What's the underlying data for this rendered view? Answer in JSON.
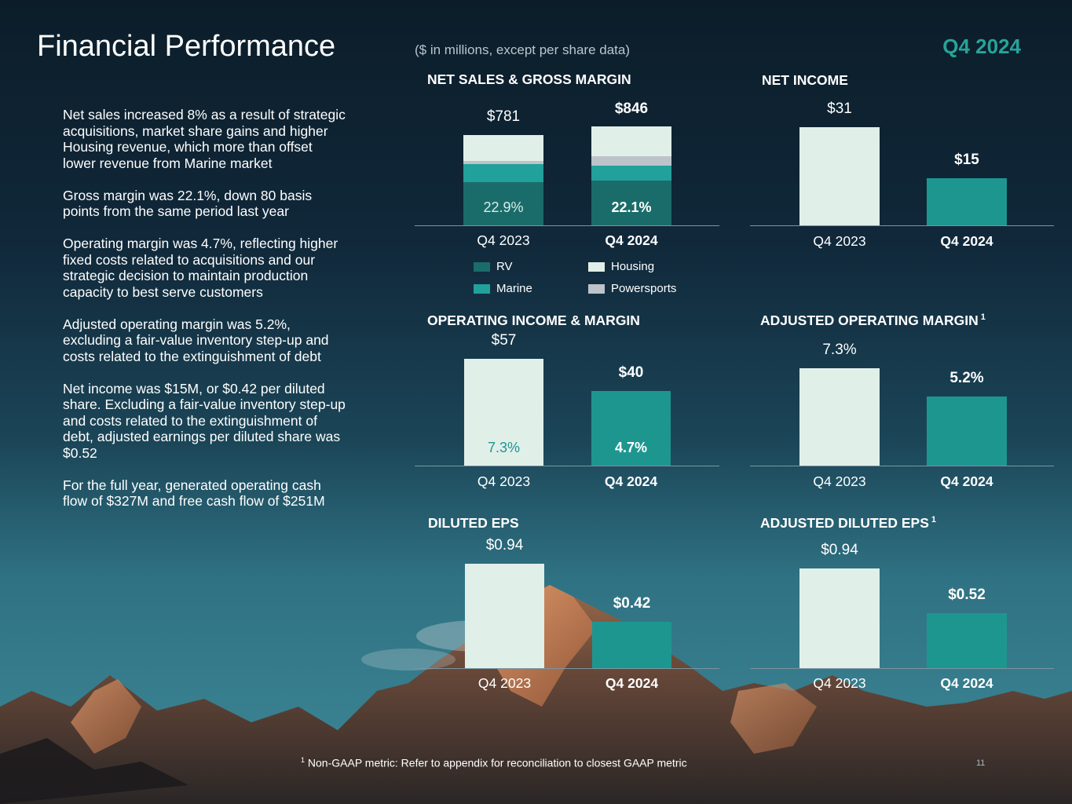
{
  "header": {
    "title": "Financial Performance",
    "units_note": "($ in millions, except per share data)",
    "period": "Q4 2024"
  },
  "bullets": [
    "Net sales increased 8% as a result of strategic acquisitions, market share gains and higher Housing revenue, which more than offset lower revenue from Marine market",
    "Gross margin was 22.1%, down 80 basis points from the same period last year",
    "Operating margin was 4.7%, reflecting higher fixed costs related to acquisitions and our strategic decision to maintain production capacity to best serve customers",
    "Adjusted operating margin was 5.2%, excluding a fair-value inventory step-up and costs related to the extinguishment of debt",
    "Net income was $15M, or $0.42 per diluted share. Excluding a fair-value inventory step-up and costs related to the extinguishment of debt, adjusted earnings per diluted share was $0.52",
    "For the full year, generated operating cash flow of $327M and free cash flow of $251M"
  ],
  "colors": {
    "rv": "#1a6c6a",
    "marine": "#22a09b",
    "housing": "#e1efe9",
    "powersports": "#bcc3c9",
    "prior_bar": "#e1efe9",
    "current_bar": "#1e9690",
    "accent": "#27a39a"
  },
  "chart_data": [
    {
      "id": "net-sales",
      "type": "bar",
      "stacked": true,
      "title": "NET SALES & GROSS MARGIN",
      "categories": [
        "Q4 2023",
        "Q4 2024"
      ],
      "totals": [
        781,
        846
      ],
      "value_labels": [
        "$781",
        "$846"
      ],
      "series": [
        {
          "name": "RV",
          "values": [
            373,
            383
          ]
        },
        {
          "name": "Marine",
          "values": [
            155,
            128
          ]
        },
        {
          "name": "Powersports",
          "values": [
            27,
            81
          ]
        },
        {
          "name": "Housing",
          "values": [
            226,
            254
          ]
        }
      ],
      "margin_labels": [
        "22.9%",
        "22.1%"
      ],
      "legend": [
        "RV",
        "Housing",
        "Marine",
        "Powersports"
      ]
    },
    {
      "id": "net-income",
      "type": "bar",
      "title": "NET INCOME",
      "categories": [
        "Q4 2023",
        "Q4 2024"
      ],
      "values": [
        31,
        15
      ],
      "value_labels": [
        "$31",
        "$15"
      ]
    },
    {
      "id": "operating-income",
      "type": "bar",
      "title": "OPERATING INCOME & MARGIN",
      "categories": [
        "Q4 2023",
        "Q4 2024"
      ],
      "values": [
        57,
        40
      ],
      "value_labels": [
        "$57",
        "$40"
      ],
      "margin_labels": [
        "7.3%",
        "4.7%"
      ]
    },
    {
      "id": "adj-op-margin",
      "type": "bar",
      "title": "ADJUSTED OPERATING MARGIN",
      "footnote_marker": "1",
      "categories": [
        "Q4 2023",
        "Q4 2024"
      ],
      "values": [
        7.3,
        5.2
      ],
      "value_labels": [
        "7.3%",
        "5.2%"
      ]
    },
    {
      "id": "diluted-eps",
      "type": "bar",
      "title": "DILUTED EPS",
      "categories": [
        "Q4 2023",
        "Q4 2024"
      ],
      "values": [
        0.94,
        0.42
      ],
      "value_labels": [
        "$0.94",
        "$0.42"
      ]
    },
    {
      "id": "adj-diluted-eps",
      "type": "bar",
      "title": "ADJUSTED DILUTED EPS",
      "footnote_marker": "1",
      "categories": [
        "Q4 2023",
        "Q4 2024"
      ],
      "values": [
        0.94,
        0.52
      ],
      "value_labels": [
        "$0.94",
        "$0.52"
      ]
    }
  ],
  "footnote": {
    "marker": "1",
    "text": "Non-GAAP metric: Refer to appendix for reconciliation to closest GAAP metric"
  },
  "page_number": "11"
}
